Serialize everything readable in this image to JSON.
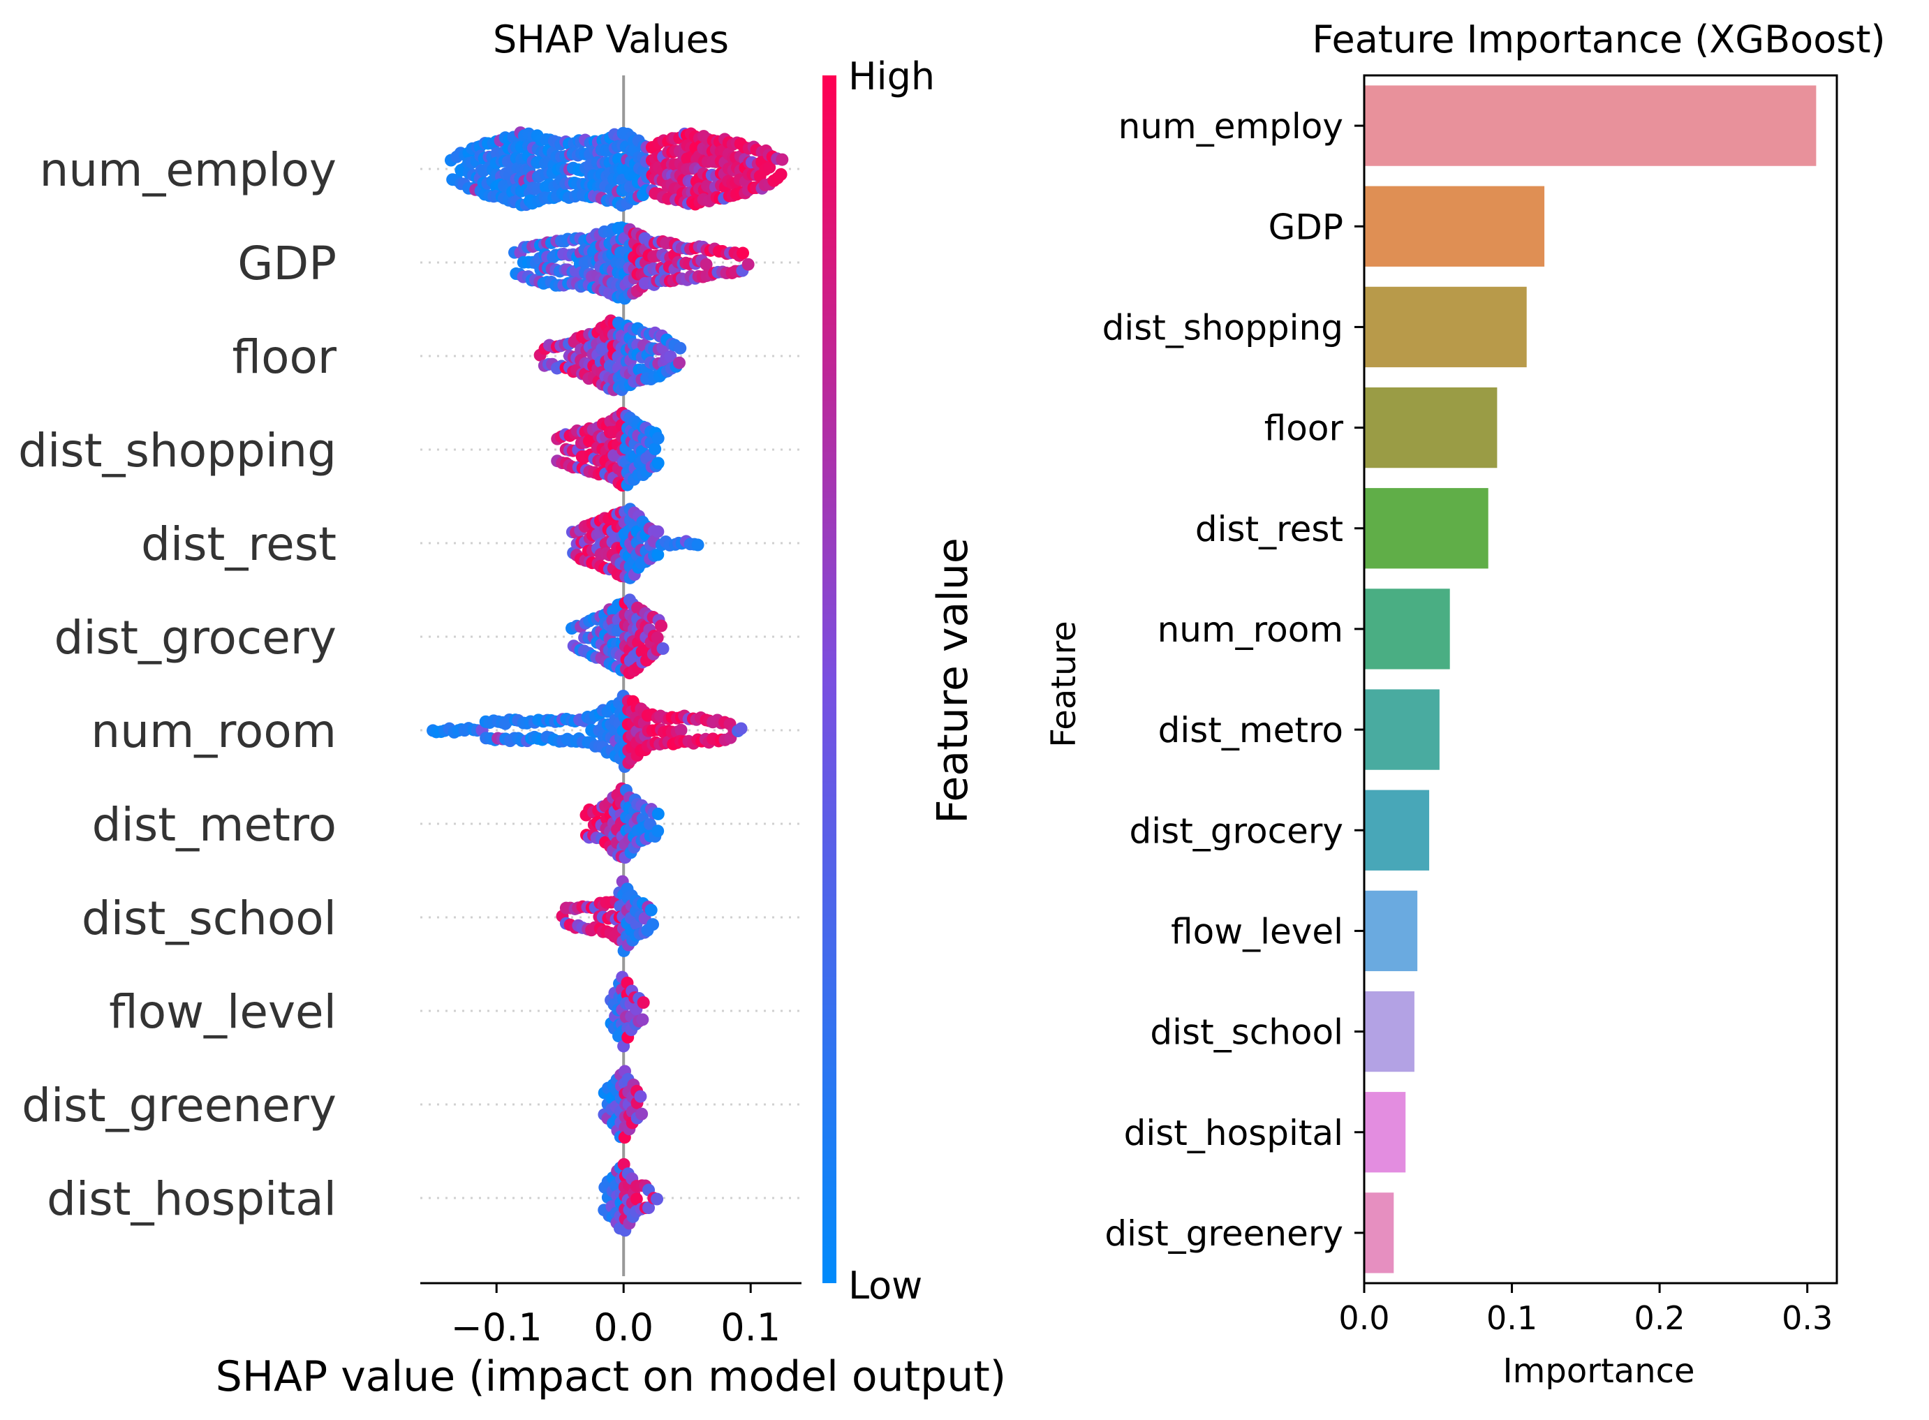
{
  "chart_data": [
    {
      "type": "scatter",
      "subtype": "shap-beeswarm",
      "title": "SHAP Values",
      "xlabel": "SHAP value (impact on model output)",
      "xlim": [
        -0.16,
        0.14
      ],
      "xticks": [
        -0.1,
        0.0,
        0.1
      ],
      "xtick_labels": [
        "−0.1",
        "0.0",
        "0.1"
      ],
      "features": [
        {
          "name": "num_employ",
          "min": -0.135,
          "max": 0.125,
          "density": [
            [
              -0.135,
              0.3
            ],
            [
              -0.11,
              0.7
            ],
            [
              -0.08,
              1.0
            ],
            [
              -0.05,
              0.75
            ],
            [
              -0.02,
              0.8
            ],
            [
              0.0,
              1.0
            ],
            [
              0.02,
              0.6
            ],
            [
              0.05,
              1.0
            ],
            [
              0.08,
              0.8
            ],
            [
              0.11,
              0.5
            ],
            [
              0.125,
              0.2
            ]
          ],
          "color_split": 0.02,
          "color_mix": 0.15
        },
        {
          "name": "GDP",
          "min": -0.085,
          "max": 0.1,
          "density": [
            [
              -0.085,
              0.3
            ],
            [
              -0.06,
              0.6
            ],
            [
              -0.03,
              0.65
            ],
            [
              -0.01,
              0.9
            ],
            [
              0.0,
              1.0
            ],
            [
              0.02,
              0.6
            ],
            [
              0.05,
              0.45
            ],
            [
              0.08,
              0.3
            ],
            [
              0.1,
              0.2
            ]
          ],
          "color_split": 0.005,
          "color_mix": 0.45
        },
        {
          "name": "floor",
          "min": -0.065,
          "max": 0.045,
          "density": [
            [
              -0.065,
              0.2
            ],
            [
              -0.04,
              0.4
            ],
            [
              -0.02,
              0.7
            ],
            [
              -0.01,
              1.0
            ],
            [
              0.0,
              0.9
            ],
            [
              0.015,
              0.7
            ],
            [
              0.03,
              0.55
            ],
            [
              0.045,
              0.2
            ]
          ],
          "color_split": -0.005,
          "color_mix": 0.55,
          "inverted": true
        },
        {
          "name": "dist_shopping",
          "min": -0.052,
          "max": 0.03,
          "density": [
            [
              -0.052,
              0.3
            ],
            [
              -0.03,
              0.55
            ],
            [
              -0.015,
              0.7
            ],
            [
              0.0,
              1.0
            ],
            [
              0.015,
              0.7
            ],
            [
              0.03,
              0.3
            ]
          ],
          "color_split": 0.0,
          "color_mix": 0.3,
          "inverted": true
        },
        {
          "name": "dist_rest",
          "min": -0.04,
          "max": 0.06,
          "density": [
            [
              -0.04,
              0.3
            ],
            [
              -0.025,
              0.6
            ],
            [
              -0.01,
              0.75
            ],
            [
              0.005,
              1.0
            ],
            [
              0.015,
              0.6
            ],
            [
              0.03,
              0.2
            ],
            [
              0.06,
              0.15
            ]
          ],
          "color_split": 0.0,
          "color_mix": 0.4,
          "inverted": true
        },
        {
          "name": "dist_grocery",
          "min": -0.04,
          "max": 0.032,
          "density": [
            [
              -0.04,
              0.25
            ],
            [
              -0.02,
              0.55
            ],
            [
              -0.005,
              0.85
            ],
            [
              0.005,
              1.0
            ],
            [
              0.02,
              0.6
            ],
            [
              0.032,
              0.3
            ]
          ],
          "color_split": 0.0,
          "color_mix": 0.45
        },
        {
          "name": "num_room",
          "min": -0.15,
          "max": 0.095,
          "density": [
            [
              -0.15,
              0.15
            ],
            [
              -0.12,
              0.2
            ],
            [
              -0.09,
              0.25
            ],
            [
              -0.06,
              0.25
            ],
            [
              -0.03,
              0.3
            ],
            [
              -0.005,
              0.7
            ],
            [
              0.0,
              1.0
            ],
            [
              0.02,
              0.4
            ],
            [
              0.05,
              0.35
            ],
            [
              0.08,
              0.25
            ],
            [
              0.095,
              0.15
            ]
          ],
          "color_split": 0.002,
          "color_mix": 0.1
        },
        {
          "name": "dist_metro",
          "min": -0.03,
          "max": 0.03,
          "density": [
            [
              -0.03,
              0.3
            ],
            [
              -0.015,
              0.5
            ],
            [
              0.0,
              1.0
            ],
            [
              0.01,
              0.6
            ],
            [
              0.03,
              0.2
            ]
          ],
          "color_split": 0.0,
          "color_mix": 0.4,
          "inverted": true
        },
        {
          "name": "dist_school",
          "min": -0.048,
          "max": 0.025,
          "density": [
            [
              -0.048,
              0.2
            ],
            [
              -0.02,
              0.35
            ],
            [
              -0.005,
              0.5
            ],
            [
              0.0,
              1.0
            ],
            [
              0.01,
              0.5
            ],
            [
              0.025,
              0.2
            ]
          ],
          "color_split": 0.0,
          "color_mix": 0.35,
          "inverted": true
        },
        {
          "name": "flow_level",
          "min": -0.01,
          "max": 0.018,
          "density": [
            [
              -0.01,
              0.3
            ],
            [
              0.0,
              1.0
            ],
            [
              0.008,
              0.4
            ],
            [
              0.018,
              0.2
            ]
          ],
          "color_split": 0.0,
          "color_mix": 0.5
        },
        {
          "name": "dist_greenery",
          "min": -0.015,
          "max": 0.015,
          "density": [
            [
              -0.015,
              0.3
            ],
            [
              0.0,
              1.0
            ],
            [
              0.008,
              0.5
            ],
            [
              0.015,
              0.2
            ]
          ],
          "color_split": 0.0,
          "color_mix": 0.5
        },
        {
          "name": "dist_hospital",
          "min": -0.015,
          "max": 0.028,
          "density": [
            [
              -0.015,
              0.3
            ],
            [
              0.0,
              1.0
            ],
            [
              0.01,
              0.4
            ],
            [
              0.028,
              0.15
            ]
          ],
          "color_split": 0.0,
          "color_mix": 0.5
        }
      ],
      "colorbar": {
        "label": "Feature value",
        "high_label": "High",
        "low_label": "Low",
        "high_color": "#ff0052",
        "mid_color": "#7a4fe0",
        "low_color": "#008bfb"
      }
    },
    {
      "type": "bar",
      "orientation": "horizontal",
      "title": "Feature Importance (XGBoost)",
      "xlabel": "Importance",
      "ylabel": "Feature",
      "xlim": [
        0,
        0.32
      ],
      "xticks": [
        0.0,
        0.1,
        0.2,
        0.3
      ],
      "xtick_labels": [
        "0.0",
        "0.1",
        "0.2",
        "0.3"
      ],
      "categories": [
        "num_employ",
        "GDP",
        "dist_shopping",
        "floor",
        "dist_rest",
        "num_room",
        "dist_metro",
        "dist_grocery",
        "flow_level",
        "dist_school",
        "dist_hospital",
        "dist_greenery"
      ],
      "values": [
        0.306,
        0.122,
        0.11,
        0.09,
        0.084,
        0.058,
        0.051,
        0.044,
        0.036,
        0.034,
        0.028,
        0.02
      ],
      "colors": [
        "#e8919b",
        "#df8f54",
        "#b89a4a",
        "#9a9c45",
        "#60ae48",
        "#4aae83",
        "#49aba0",
        "#48a7b8",
        "#6aaae0",
        "#b3a2e4",
        "#e38de0",
        "#e68fc0"
      ]
    }
  ]
}
